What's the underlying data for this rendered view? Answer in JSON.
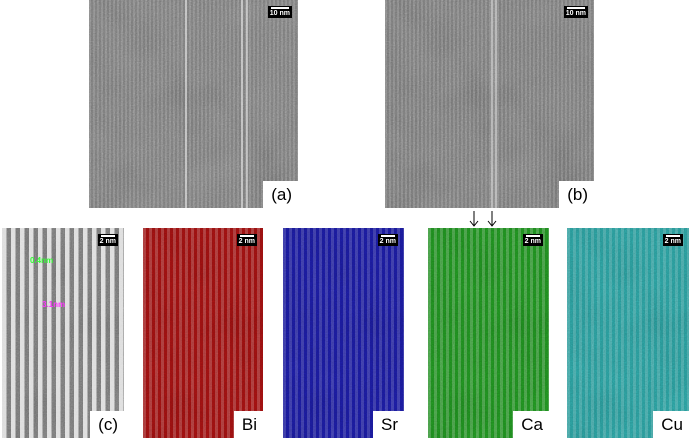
{
  "panels": [
    {
      "label": "(a)",
      "scale_bar": "10 nm"
    },
    {
      "label": "(b)",
      "scale_bar": "10 nm"
    },
    {
      "label": "(c)",
      "scale_bar": "2 nm",
      "annotations": [
        "0.4nm",
        "3.1nm"
      ]
    },
    {
      "label": "Bi",
      "scale_bar": "2 nm"
    },
    {
      "label": "Sr",
      "scale_bar": "2 nm"
    },
    {
      "label": "Ca",
      "scale_bar": "2 nm"
    },
    {
      "label": "Cu",
      "scale_bar": "2 nm"
    }
  ]
}
